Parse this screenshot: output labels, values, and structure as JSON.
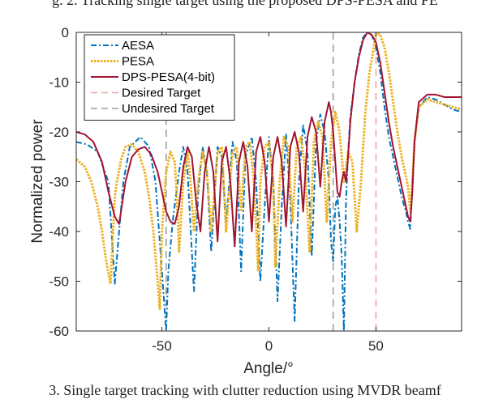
{
  "captions": {
    "top": "g. 2.   Tracking single target using the proposed DPS-PESA and PE",
    "bottom": "3.  Single target tracking with clutter reduction using MVDR beamf"
  },
  "chart_data": {
    "type": "line",
    "title": "",
    "xlabel": "Angle/°",
    "ylabel": "Normalized power",
    "xlim": [
      -90,
      90
    ],
    "ylim": [
      -60,
      0
    ],
    "xticks": [
      -50,
      0,
      50
    ],
    "yticks": [
      0,
      -10,
      -20,
      -30,
      -40,
      -50,
      -60
    ],
    "grid": false,
    "legend_position": "top-left",
    "series": [
      {
        "name": "AESA",
        "color": "#0072BD",
        "style": "dash-dot",
        "x": [
          -90,
          -85,
          -80,
          -75,
          -72,
          -70,
          -68,
          -65,
          -60,
          -56,
          -53,
          -50,
          -48,
          -47,
          -45,
          -42,
          -40,
          -38,
          -35,
          -33,
          -31,
          -29,
          -27,
          -24,
          -22,
          -20,
          -17,
          -15,
          -13,
          -11,
          -8,
          -6,
          -4,
          -2,
          0,
          2,
          4,
          6,
          8,
          10,
          12,
          14,
          16,
          18,
          20,
          22,
          24,
          26,
          28,
          29,
          30,
          31,
          32,
          33,
          34,
          35,
          36,
          37,
          38,
          40,
          42,
          44,
          46,
          48,
          50,
          52,
          54,
          56,
          58,
          60,
          62,
          64,
          65,
          66,
          67,
          68,
          70,
          74,
          78,
          82,
          86,
          90
        ],
        "y": [
          -22,
          -22.5,
          -24,
          -30,
          -50.5,
          -40,
          -30,
          -23,
          -21,
          -23,
          -30,
          -48,
          -60,
          -48,
          -38,
          -28,
          -23,
          -28,
          -52,
          -32,
          -23,
          -28,
          -44,
          -23,
          -25,
          -38,
          -22,
          -26,
          -48,
          -25,
          -21,
          -30,
          -50,
          -35,
          -21,
          -30,
          -54,
          -35,
          -20.5,
          -34,
          -58,
          -30,
          -18.5,
          -24,
          -45,
          -22,
          -16.5,
          -20,
          -30,
          -42,
          -46,
          -35,
          -33,
          -38,
          -45,
          -60,
          -34,
          -24,
          -17,
          -10,
          -4.5,
          -1,
          0,
          -0.5,
          -3,
          -8,
          -15,
          -21,
          -25,
          -29,
          -33,
          -36,
          -38,
          -39.5,
          -31,
          -22,
          -15,
          -13,
          -13.5,
          -14.5,
          -15.5,
          -16
        ]
      },
      {
        "name": "PESA",
        "color": "#EDB120",
        "style": "dotted",
        "x": [
          -90,
          -86,
          -83,
          -80,
          -78,
          -76,
          -74,
          -72,
          -71,
          -69,
          -67,
          -64,
          -61,
          -58,
          -56,
          -54,
          -52,
          -51,
          -50,
          -48,
          -46,
          -44,
          -43,
          -42,
          -40,
          -38,
          -37,
          -35,
          -33,
          -31,
          -29,
          -27,
          -24,
          -22,
          -20,
          -17,
          -15,
          -13,
          -11,
          -9,
          -7,
          -5,
          -4,
          -2,
          0,
          2,
          3,
          5,
          7,
          9,
          11,
          13,
          15,
          17,
          19,
          21,
          23,
          25,
          27,
          29,
          31,
          33,
          35,
          37,
          39,
          41,
          43,
          45,
          47,
          49,
          50,
          52,
          54,
          56,
          58,
          60,
          62,
          64,
          65,
          66,
          67,
          68,
          70,
          74,
          78,
          82,
          86,
          90
        ],
        "y": [
          -25.5,
          -27,
          -30,
          -35,
          -40,
          -46,
          -50.5,
          -33,
          -30,
          -25.5,
          -23,
          -22.5,
          -24,
          -28,
          -33,
          -40,
          -50,
          -55.5,
          -40,
          -28,
          -24,
          -26,
          -33,
          -44,
          -30,
          -24,
          -28,
          -40,
          -30,
          -24,
          -28,
          -40,
          -24,
          -23,
          -40,
          -24,
          -23,
          -36,
          -23,
          -22,
          -30,
          -48,
          -30,
          -23,
          -22,
          -30,
          -47,
          -30,
          -21,
          -23,
          -38,
          -23,
          -21,
          -28,
          -44,
          -22,
          -18,
          -21,
          -38,
          -22,
          -16,
          -20,
          -30,
          -24,
          -26,
          -40,
          -30,
          -16,
          -8,
          -3,
          0,
          -0.5,
          -3,
          -8,
          -14,
          -20,
          -25,
          -29,
          -31,
          -36,
          -30,
          -22,
          -15,
          -13.5,
          -14,
          -14.5,
          -15,
          -15.5
        ]
      },
      {
        "name": "DPS-PESA(4-bit)",
        "color": "#A2142F",
        "style": "solid",
        "x": [
          -90,
          -86,
          -82,
          -78,
          -75,
          -72,
          -70,
          -67,
          -64,
          -61,
          -58,
          -55,
          -52,
          -50,
          -48,
          -46,
          -44,
          -42,
          -40,
          -38,
          -36,
          -34,
          -32,
          -30,
          -28,
          -26,
          -24,
          -22,
          -20,
          -18,
          -16,
          -14,
          -12,
          -10,
          -8,
          -6,
          -4,
          -2,
          0,
          2,
          4,
          6,
          8,
          10,
          12,
          14,
          16,
          18,
          20,
          22,
          24,
          26,
          28,
          29,
          30,
          31,
          32,
          33,
          34,
          35,
          36,
          37,
          38,
          40,
          42,
          44,
          46,
          48,
          50,
          52,
          54,
          56,
          58,
          60,
          62,
          64,
          65,
          66,
          67,
          68,
          70,
          74,
          78,
          82,
          86,
          90
        ],
        "y": [
          -20,
          -20.5,
          -22,
          -26,
          -32,
          -37,
          -38.5,
          -30,
          -25,
          -23.5,
          -23,
          -24.5,
          -28,
          -32,
          -36,
          -38,
          -38.5,
          -35,
          -27,
          -23,
          -25,
          -34,
          -40,
          -28,
          -23,
          -28,
          -42,
          -26,
          -23,
          -30,
          -43,
          -26,
          -22,
          -27,
          -40,
          -24,
          -21,
          -26,
          -38,
          -25,
          -21,
          -26,
          -39,
          -23,
          -20,
          -24,
          -36,
          -21,
          -17,
          -20,
          -31,
          -18,
          -14,
          -16,
          -20,
          -26,
          -32,
          -33,
          -30,
          -28,
          -30,
          -25,
          -18,
          -10,
          -5,
          -1.5,
          0,
          -0.5,
          -2,
          -6,
          -12,
          -18,
          -23,
          -27,
          -31,
          -35,
          -37,
          -38,
          -32,
          -22,
          -14,
          -12.5,
          -12.5,
          -13,
          -13,
          -13
        ]
      }
    ],
    "reference_lines": [
      {
        "name": "Desired Target",
        "x": 50,
        "color": "#F4A5A5"
      },
      {
        "name": "Undesired Target",
        "x": 30,
        "color": "#9E9E9E"
      },
      {
        "x": -48,
        "color": "#9E9E9E"
      }
    ]
  }
}
